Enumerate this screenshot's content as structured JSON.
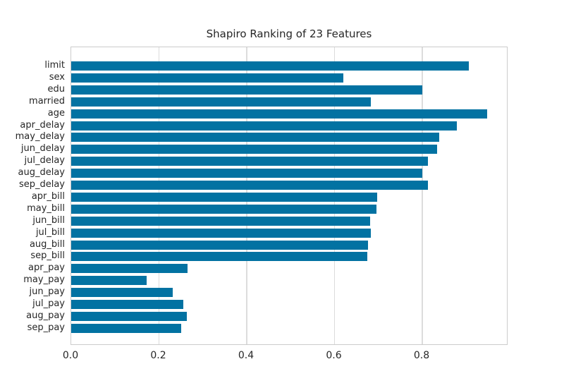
{
  "chart_data": {
    "type": "bar",
    "orientation": "horizontal",
    "title": "Shapiro Ranking of 23 Features",
    "categories": [
      "limit",
      "sex",
      "edu",
      "married",
      "age",
      "apr_delay",
      "may_delay",
      "jun_delay",
      "jul_delay",
      "aug_delay",
      "sep_delay",
      "apr_bill",
      "may_bill",
      "jun_bill",
      "jul_bill",
      "aug_bill",
      "sep_bill",
      "apr_pay",
      "may_pay",
      "jun_pay",
      "jul_pay",
      "aug_pay",
      "sep_pay"
    ],
    "values": [
      0.906,
      0.62,
      0.8,
      0.682,
      0.948,
      0.879,
      0.839,
      0.834,
      0.813,
      0.8,
      0.813,
      0.698,
      0.695,
      0.681,
      0.682,
      0.677,
      0.675,
      0.265,
      0.172,
      0.232,
      0.256,
      0.264,
      0.251
    ],
    "xlabel": "",
    "ylabel": "",
    "xlim": [
      0,
      0.996
    ],
    "xtick_labels": [
      "0.0",
      "0.2",
      "0.4",
      "0.6",
      "0.8"
    ],
    "xtick_values": [
      0.0,
      0.2,
      0.4,
      0.6,
      0.8
    ],
    "grid": true,
    "legend": false,
    "colors": {
      "bar": "#0272a2",
      "grid": "#dcdcdc",
      "spine": "#cccccc",
      "text": "#262626"
    }
  }
}
